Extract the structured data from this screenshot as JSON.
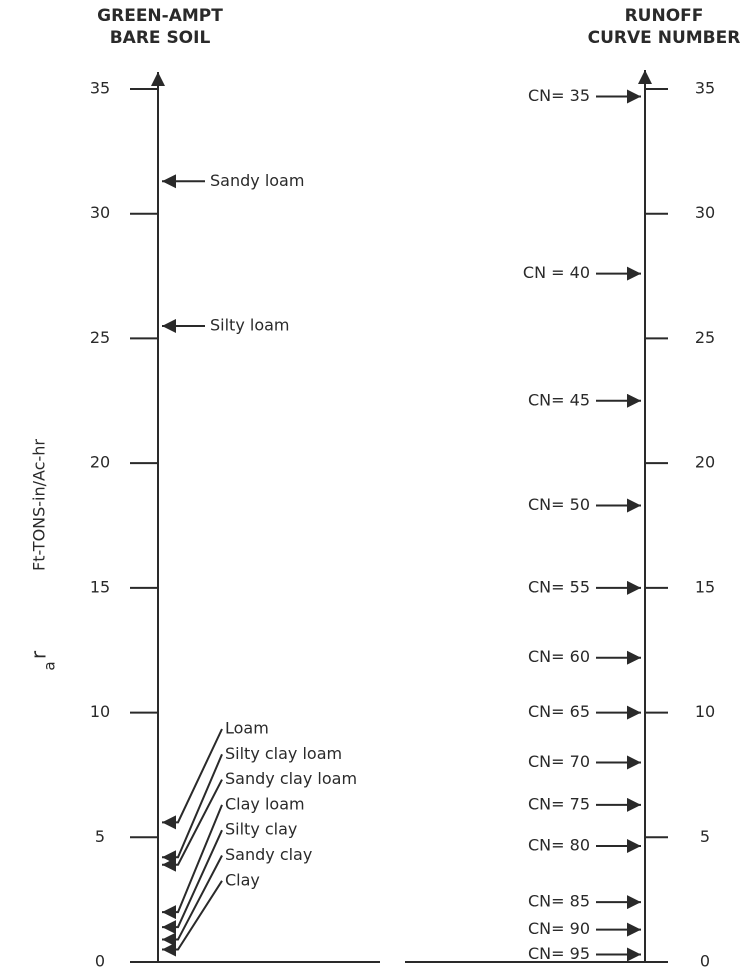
{
  "chart_data": {
    "type": "nomograph",
    "left_title": [
      "GREEN-AMPT",
      "BARE SOIL"
    ],
    "right_title": [
      "RUNOFF",
      "CURVE NUMBER"
    ],
    "y_label_symbol": "r",
    "y_label_subscript": "a",
    "y_label": "Ft-TONS-in/Ac-hr",
    "ylim": [
      0,
      35
    ],
    "yticks": [
      0,
      5,
      10,
      15,
      20,
      25,
      30,
      35
    ],
    "left_points": [
      {
        "label": "Sandy loam",
        "value": 31.3
      },
      {
        "label": "Silty loam",
        "value": 25.5
      },
      {
        "label": "Loam",
        "value": 5.6
      },
      {
        "label": "Silty clay loam",
        "value": 4.2
      },
      {
        "label": "Sandy clay loam",
        "value": 3.9
      },
      {
        "label": "Clay loam",
        "value": 2.0
      },
      {
        "label": "Silty clay",
        "value": 1.4
      },
      {
        "label": "Sandy clay",
        "value": 0.9
      },
      {
        "label": "Clay",
        "value": 0.5
      }
    ],
    "right_points": [
      {
        "label": "CN= 35",
        "value": 34.7
      },
      {
        "label": "CN = 40",
        "value": 27.6
      },
      {
        "label": "CN= 45",
        "value": 22.5
      },
      {
        "label": "CN= 50",
        "value": 18.3
      },
      {
        "label": "CN= 55",
        "value": 15.0
      },
      {
        "label": "CN= 60",
        "value": 12.2
      },
      {
        "label": "CN= 65",
        "value": 10.0
      },
      {
        "label": "CN= 70",
        "value": 8.0
      },
      {
        "label": "CN= 75",
        "value": 6.3
      },
      {
        "label": "CN= 80",
        "value": 4.65
      },
      {
        "label": "CN= 85",
        "value": 2.4
      },
      {
        "label": "CN= 90",
        "value": 1.3
      },
      {
        "label": "CN= 95",
        "value": 0.3
      }
    ]
  }
}
